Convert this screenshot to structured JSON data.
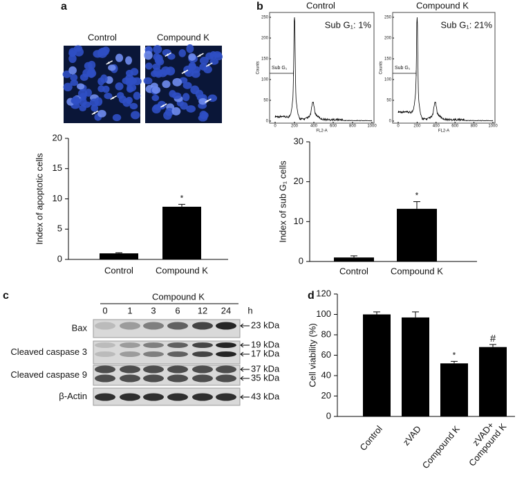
{
  "panel_labels": [
    "a",
    "b",
    "c",
    "d"
  ],
  "microscopy": {
    "labels": [
      "Control",
      "Compound K"
    ]
  },
  "chart_data": [
    {
      "type": "bar",
      "y_label": "Index of apoptotic cells",
      "categories": [
        "Control",
        "Compound K"
      ],
      "values": [
        1,
        8.7
      ],
      "errors": [
        0.1,
        0.4
      ],
      "color": "#000000",
      "ylim": [
        0,
        20
      ],
      "yticks": [
        0,
        5,
        10,
        15,
        20
      ],
      "annotations": [
        {
          "category": "Compound K",
          "text": "*"
        }
      ]
    },
    {
      "type": "flow",
      "title": "Control",
      "annotation": "Sub G₁: 1%",
      "marker_label": "Sub G₁",
      "x_label": "FL2-A",
      "y_label": "Counts",
      "xlim": [
        0,
        1000
      ],
      "xticks": [
        0,
        200,
        400,
        600,
        800,
        1000
      ],
      "ylim": [
        0,
        250
      ],
      "yticks": [
        0,
        50,
        100,
        150,
        200,
        250
      ]
    },
    {
      "type": "flow",
      "title": "Compound K",
      "annotation": "Sub G₁: 21%",
      "marker_label": "Sub G₁",
      "x_label": "FL2-A",
      "y_label": "Counts",
      "xlim": [
        0,
        1000
      ],
      "xticks": [
        0,
        200,
        400,
        600,
        800,
        1000
      ],
      "ylim": [
        0,
        250
      ],
      "yticks": [
        0,
        50,
        100,
        150,
        200,
        250
      ]
    },
    {
      "type": "bar",
      "y_label": "Index of sub G₁ cells",
      "categories": [
        "Control",
        "Compound K"
      ],
      "values": [
        1,
        13.2
      ],
      "errors": [
        0.4,
        1.8
      ],
      "color": "#000000",
      "ylim": [
        0,
        30
      ],
      "yticks": [
        0,
        10,
        20,
        30
      ],
      "annotations": [
        {
          "category": "Compound K",
          "text": "*"
        }
      ]
    },
    {
      "type": "bar",
      "y_label": "Cell viability (%)",
      "categories": [
        "Control",
        "zVAD",
        "Compound K",
        "zVAD+\nCompound K"
      ],
      "values": [
        100,
        97,
        52,
        68
      ],
      "errors": [
        2.5,
        5.5,
        2,
        2.5
      ],
      "color": "#000000",
      "ylim": [
        0,
        120
      ],
      "yticks": [
        0,
        20,
        40,
        60,
        80,
        100,
        120
      ],
      "annotations": [
        {
          "category": "Compound K",
          "text": "*"
        },
        {
          "category": "zVAD+\nCompound K",
          "text": "#"
        }
      ]
    }
  ],
  "western_blot": {
    "treatment": "Compound K",
    "lanes": [
      0,
      1,
      3,
      6,
      12,
      24
    ],
    "unit": "h",
    "rows": [
      {
        "label": "Bax",
        "markers": [
          "23 kDa"
        ]
      },
      {
        "label": "Cleaved caspase 3",
        "markers": [
          "19 kDa",
          "17 kDa"
        ]
      },
      {
        "label": "Cleaved caspase 9",
        "markers": [
          "37 kDa",
          "35 kDa"
        ]
      },
      {
        "label": "β-Actin",
        "markers": [
          "43 kDa"
        ]
      }
    ]
  }
}
